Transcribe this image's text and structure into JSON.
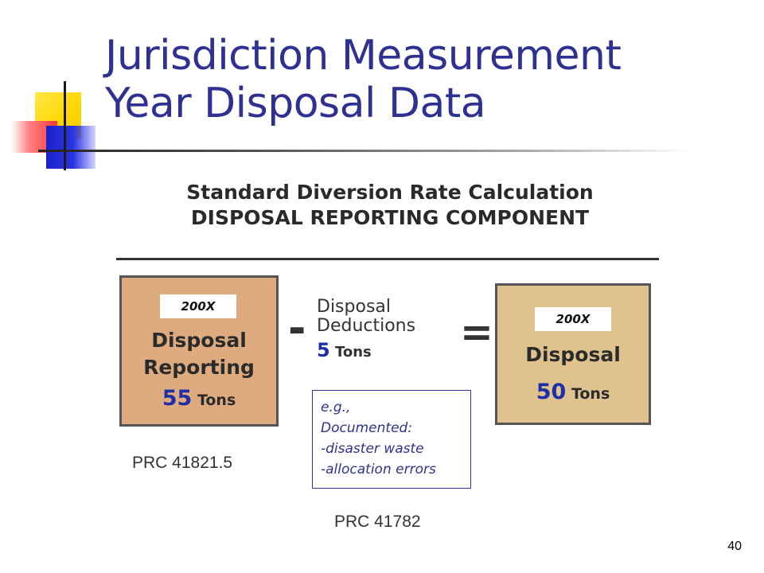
{
  "slide": {
    "title_line1": "Jurisdiction Measurement",
    "title_line2": "Year Disposal Data",
    "page_number": "40",
    "accent_color": "#2e3192"
  },
  "diagram": {
    "heading_line1": "Standard Diversion Rate Calculation",
    "heading_line2": "DISPOSAL REPORTING COMPONENT",
    "left_box": {
      "year_tag": "200X",
      "label_line1": "Disposal",
      "label_line2": "Reporting",
      "amount": "55",
      "unit": "Tons",
      "fill_color": "#deab7e"
    },
    "operator_minus": "-",
    "middle": {
      "label_line1": "Disposal",
      "label_line2": "Deductions",
      "amount": "5",
      "unit": "Tons"
    },
    "operator_equals": "=",
    "right_box": {
      "year_tag": "200X",
      "label": "Disposal",
      "amount": "50",
      "unit": "Tons",
      "fill_color": "#dfc28e"
    },
    "example_box": {
      "line1": "e.g.,",
      "line2": "Documented:",
      "line3": "-disaster waste",
      "line4": "-allocation errors"
    },
    "reference_left": "PRC 41821.5",
    "reference_bottom": "PRC 41782"
  }
}
